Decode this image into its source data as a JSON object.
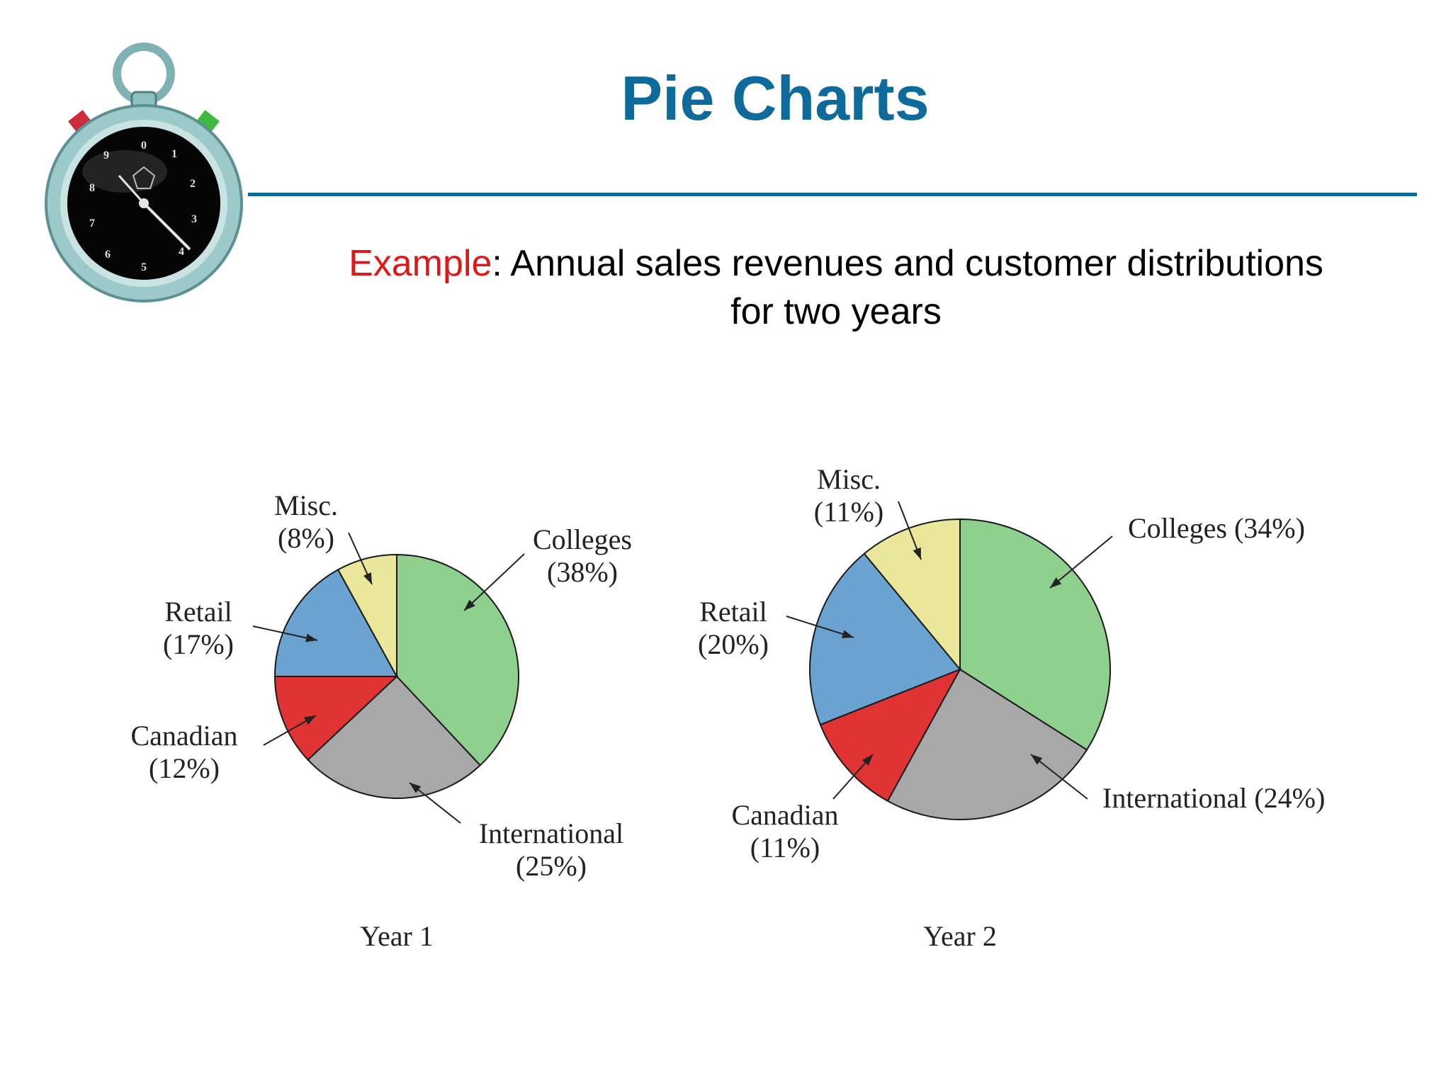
{
  "title": "Pie Charts",
  "subtitle": {
    "highlight": "Example",
    "rest_line1": ": Annual sales revenues and customer distributions",
    "line2": "for two years"
  },
  "colors": {
    "title": "#0e6a9a",
    "highlight": "#e01818",
    "Colleges": "#8fd08f",
    "International": "#a8a8a8",
    "Canadian": "#e03434",
    "Retail": "#6aa2d0",
    "Misc.": "#eae69a"
  },
  "icon": "stopwatch-icon",
  "chart_data": [
    {
      "type": "pie",
      "caption": "Year 1",
      "slices": [
        {
          "name": "Colleges",
          "value": 38,
          "label_lines": [
            "Colleges",
            "(38%)"
          ]
        },
        {
          "name": "International",
          "value": 25,
          "label_lines": [
            "International",
            "(25%)"
          ]
        },
        {
          "name": "Canadian",
          "value": 12,
          "label_lines": [
            "Canadian",
            "(12%)"
          ]
        },
        {
          "name": "Retail",
          "value": 17,
          "label_lines": [
            "Retail",
            "(17%)"
          ]
        },
        {
          "name": "Misc.",
          "value": 8,
          "label_lines": [
            "Misc.",
            "(8%)"
          ]
        }
      ]
    },
    {
      "type": "pie",
      "caption": "Year 2",
      "slices": [
        {
          "name": "Colleges",
          "value": 34,
          "label_lines": [
            "Colleges (34%)"
          ]
        },
        {
          "name": "International",
          "value": 24,
          "label_lines": [
            "International (24%)"
          ]
        },
        {
          "name": "Canadian",
          "value": 11,
          "label_lines": [
            "Canadian",
            "(11%)"
          ]
        },
        {
          "name": "Retail",
          "value": 20,
          "label_lines": [
            "Retail",
            "(20%)"
          ]
        },
        {
          "name": "Misc.",
          "value": 11,
          "label_lines": [
            "Misc.",
            "(11%)"
          ]
        }
      ]
    }
  ]
}
